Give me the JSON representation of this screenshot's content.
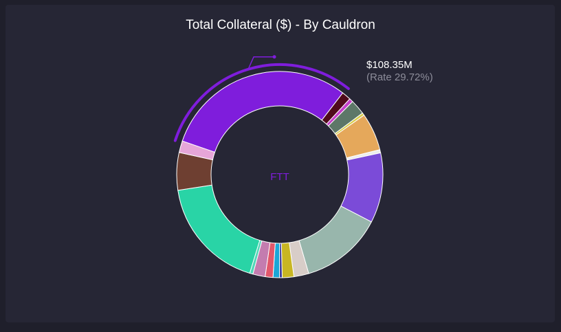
{
  "title": "Total Collateral ($) - By Cauldron",
  "chart_data": {
    "type": "pie",
    "donut": true,
    "title": "Total Collateral ($) - By Cauldron",
    "center_label": "FTT",
    "highlight": {
      "value_label": "$108.35M",
      "rate_label": "(Rate 29.72%)"
    },
    "slices": [
      {
        "value": 29.72,
        "color": "#7f1ddc"
      },
      {
        "value": 1.4,
        "color": "#4f0a1b"
      },
      {
        "value": 0.6,
        "color": "#c53fc9"
      },
      {
        "value": 2.3,
        "color": "#5d7768"
      },
      {
        "value": 0.4,
        "color": "#d8cd4a"
      },
      {
        "value": 5.8,
        "color": "#e5a85b"
      },
      {
        "value": 0.5,
        "color": "#ececec"
      },
      {
        "value": 10.8,
        "color": "#7b4bd8"
      },
      {
        "value": 12.7,
        "color": "#98b6ac"
      },
      {
        "value": 2.3,
        "color": "#d8cdc8"
      },
      {
        "value": 1.8,
        "color": "#c8b623"
      },
      {
        "value": 0.4,
        "color": "#2d2d94"
      },
      {
        "value": 1.0,
        "color": "#1ba6d6"
      },
      {
        "value": 1.2,
        "color": "#e2576b"
      },
      {
        "value": 1.9,
        "color": "#c47caf"
      },
      {
        "value": 0.5,
        "color": "#53d6b8"
      },
      {
        "value": 17.58,
        "color": "#29d4a6"
      },
      {
        "value": 5.8,
        "color": "#6e3f31"
      },
      {
        "value": 1.8,
        "color": "#e6a6d8"
      }
    ]
  }
}
